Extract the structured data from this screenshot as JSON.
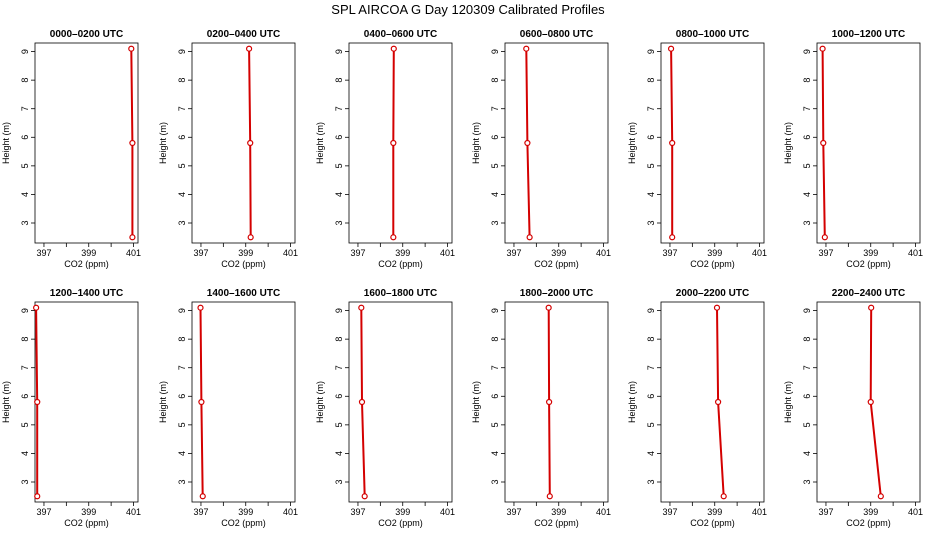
{
  "title": "SPL AIRCOA G  Day 120309  Calibrated Profiles",
  "colors": {
    "series": "#d40000",
    "axis": "#000000"
  },
  "chart_data": [
    {
      "type": "line",
      "title": "0000–0200 UTC",
      "xlabel": "CO2 (ppm)",
      "ylabel": "Height (m)",
      "xlim": [
        396.6,
        401.2
      ],
      "ylim": [
        2.3,
        9.3
      ],
      "x_ticks": [
        397,
        398,
        399,
        400,
        401
      ],
      "x_tick_labels": [
        "397",
        "",
        "399",
        "",
        "401"
      ],
      "y_ticks": [
        3,
        4,
        5,
        6,
        7,
        8,
        9
      ],
      "y_tick_labels": [
        "3",
        "4",
        "5",
        "6",
        "7",
        "8",
        "9"
      ],
      "series": [
        {
          "x": [
            400.9,
            400.95,
            400.95
          ],
          "y": [
            9.1,
            5.8,
            2.5
          ]
        }
      ]
    },
    {
      "type": "line",
      "title": "0200–0400 UTC",
      "xlabel": "CO2 (ppm)",
      "ylabel": "Height (m)",
      "xlim": [
        396.6,
        401.2
      ],
      "ylim": [
        2.3,
        9.3
      ],
      "x_ticks": [
        397,
        398,
        399,
        400,
        401
      ],
      "x_tick_labels": [
        "397",
        "",
        "399",
        "",
        "401"
      ],
      "y_ticks": [
        3,
        4,
        5,
        6,
        7,
        8,
        9
      ],
      "y_tick_labels": [
        "3",
        "4",
        "5",
        "6",
        "7",
        "8",
        "9"
      ],
      "series": [
        {
          "x": [
            399.15,
            399.2,
            399.22
          ],
          "y": [
            9.1,
            5.8,
            2.5
          ]
        }
      ]
    },
    {
      "type": "line",
      "title": "0400–0600 UTC",
      "xlabel": "CO2 (ppm)",
      "ylabel": "Height (m)",
      "xlim": [
        396.6,
        401.2
      ],
      "ylim": [
        2.3,
        9.3
      ],
      "x_ticks": [
        397,
        398,
        399,
        400,
        401
      ],
      "x_tick_labels": [
        "397",
        "",
        "399",
        "",
        "401"
      ],
      "y_ticks": [
        3,
        4,
        5,
        6,
        7,
        8,
        9
      ],
      "y_tick_labels": [
        "3",
        "4",
        "5",
        "6",
        "7",
        "8",
        "9"
      ],
      "series": [
        {
          "x": [
            398.6,
            398.58,
            398.58
          ],
          "y": [
            9.1,
            5.8,
            2.5
          ]
        }
      ]
    },
    {
      "type": "line",
      "title": "0600–0800 UTC",
      "xlabel": "CO2 (ppm)",
      "ylabel": "Height (m)",
      "xlim": [
        396.6,
        401.2
      ],
      "ylim": [
        2.3,
        9.3
      ],
      "x_ticks": [
        397,
        398,
        399,
        400,
        401
      ],
      "x_tick_labels": [
        "397",
        "",
        "399",
        "",
        "401"
      ],
      "y_ticks": [
        3,
        4,
        5,
        6,
        7,
        8,
        9
      ],
      "y_tick_labels": [
        "3",
        "4",
        "5",
        "6",
        "7",
        "8",
        "9"
      ],
      "series": [
        {
          "x": [
            397.55,
            397.6,
            397.7
          ],
          "y": [
            9.1,
            5.8,
            2.5
          ]
        }
      ]
    },
    {
      "type": "line",
      "title": "0800–1000 UTC",
      "xlabel": "CO2 (ppm)",
      "ylabel": "Height (m)",
      "xlim": [
        396.6,
        401.2
      ],
      "ylim": [
        2.3,
        9.3
      ],
      "x_ticks": [
        397,
        398,
        399,
        400,
        401
      ],
      "x_tick_labels": [
        "397",
        "",
        "399",
        "",
        "401"
      ],
      "y_ticks": [
        3,
        4,
        5,
        6,
        7,
        8,
        9
      ],
      "y_tick_labels": [
        "3",
        "4",
        "5",
        "6",
        "7",
        "8",
        "9"
      ],
      "series": [
        {
          "x": [
            397.05,
            397.1,
            397.1
          ],
          "y": [
            9.1,
            5.8,
            2.5
          ]
        }
      ]
    },
    {
      "type": "line",
      "title": "1000–1200 UTC",
      "xlabel": "CO2 (ppm)",
      "ylabel": "Height (m)",
      "xlim": [
        396.6,
        401.2
      ],
      "ylim": [
        2.3,
        9.3
      ],
      "x_ticks": [
        397,
        398,
        399,
        400,
        401
      ],
      "x_tick_labels": [
        "397",
        "",
        "399",
        "",
        "401"
      ],
      "y_ticks": [
        3,
        4,
        5,
        6,
        7,
        8,
        9
      ],
      "y_tick_labels": [
        "3",
        "4",
        "5",
        "6",
        "7",
        "8",
        "9"
      ],
      "series": [
        {
          "x": [
            396.85,
            396.88,
            396.95
          ],
          "y": [
            9.1,
            5.8,
            2.5
          ]
        }
      ]
    },
    {
      "type": "line",
      "title": "1200–1400 UTC",
      "xlabel": "CO2 (ppm)",
      "ylabel": "Height (m)",
      "xlim": [
        396.6,
        401.2
      ],
      "ylim": [
        2.3,
        9.3
      ],
      "x_ticks": [
        397,
        398,
        399,
        400,
        401
      ],
      "x_tick_labels": [
        "397",
        "",
        "399",
        "",
        "401"
      ],
      "y_ticks": [
        3,
        4,
        5,
        6,
        7,
        8,
        9
      ],
      "y_tick_labels": [
        "3",
        "4",
        "5",
        "6",
        "7",
        "8",
        "9"
      ],
      "series": [
        {
          "x": [
            396.65,
            396.7,
            396.7
          ],
          "y": [
            9.1,
            5.8,
            2.5
          ]
        }
      ]
    },
    {
      "type": "line",
      "title": "1400–1600 UTC",
      "xlabel": "CO2 (ppm)",
      "ylabel": "Height (m)",
      "xlim": [
        396.6,
        401.2
      ],
      "ylim": [
        2.3,
        9.3
      ],
      "x_ticks": [
        397,
        398,
        399,
        400,
        401
      ],
      "x_tick_labels": [
        "397",
        "",
        "399",
        "",
        "401"
      ],
      "y_ticks": [
        3,
        4,
        5,
        6,
        7,
        8,
        9
      ],
      "y_tick_labels": [
        "3",
        "4",
        "5",
        "6",
        "7",
        "8",
        "9"
      ],
      "series": [
        {
          "x": [
            396.98,
            397.02,
            397.08
          ],
          "y": [
            9.1,
            5.8,
            2.5
          ]
        }
      ]
    },
    {
      "type": "line",
      "title": "1600–1800 UTC",
      "xlabel": "CO2 (ppm)",
      "ylabel": "Height (m)",
      "xlim": [
        396.6,
        401.2
      ],
      "ylim": [
        2.3,
        9.3
      ],
      "x_ticks": [
        397,
        398,
        399,
        400,
        401
      ],
      "x_tick_labels": [
        "397",
        "",
        "399",
        "",
        "401"
      ],
      "y_ticks": [
        3,
        4,
        5,
        6,
        7,
        8,
        9
      ],
      "y_tick_labels": [
        "3",
        "4",
        "5",
        "6",
        "7",
        "8",
        "9"
      ],
      "series": [
        {
          "x": [
            397.15,
            397.18,
            397.3
          ],
          "y": [
            9.1,
            5.8,
            2.5
          ]
        }
      ]
    },
    {
      "type": "line",
      "title": "1800–2000 UTC",
      "xlabel": "CO2 (ppm)",
      "ylabel": "Height (m)",
      "xlim": [
        396.6,
        401.2
      ],
      "ylim": [
        2.3,
        9.3
      ],
      "x_ticks": [
        397,
        398,
        399,
        400,
        401
      ],
      "x_tick_labels": [
        "397",
        "",
        "399",
        "",
        "401"
      ],
      "y_ticks": [
        3,
        4,
        5,
        6,
        7,
        8,
        9
      ],
      "y_tick_labels": [
        "3",
        "4",
        "5",
        "6",
        "7",
        "8",
        "9"
      ],
      "series": [
        {
          "x": [
            398.55,
            398.57,
            398.6
          ],
          "y": [
            9.1,
            5.8,
            2.5
          ]
        }
      ]
    },
    {
      "type": "line",
      "title": "2000–2200 UTC",
      "xlabel": "CO2 (ppm)",
      "ylabel": "Height (m)",
      "xlim": [
        396.6,
        401.2
      ],
      "ylim": [
        2.3,
        9.3
      ],
      "x_ticks": [
        397,
        398,
        399,
        400,
        401
      ],
      "x_tick_labels": [
        "397",
        "",
        "399",
        "",
        "401"
      ],
      "y_ticks": [
        3,
        4,
        5,
        6,
        7,
        8,
        9
      ],
      "y_tick_labels": [
        "3",
        "4",
        "5",
        "6",
        "7",
        "8",
        "9"
      ],
      "series": [
        {
          "x": [
            399.1,
            399.15,
            399.4
          ],
          "y": [
            9.1,
            5.8,
            2.5
          ]
        }
      ]
    },
    {
      "type": "line",
      "title": "2200–2400 UTC",
      "xlabel": "CO2 (ppm)",
      "ylabel": "Height (m)",
      "xlim": [
        396.6,
        401.2
      ],
      "ylim": [
        2.3,
        9.3
      ],
      "x_ticks": [
        397,
        398,
        399,
        400,
        401
      ],
      "x_tick_labels": [
        "397",
        "",
        "399",
        "",
        "401"
      ],
      "y_ticks": [
        3,
        4,
        5,
        6,
        7,
        8,
        9
      ],
      "y_tick_labels": [
        "3",
        "4",
        "5",
        "6",
        "7",
        "8",
        "9"
      ],
      "series": [
        {
          "x": [
            399.02,
            399.0,
            399.45
          ],
          "y": [
            9.1,
            5.8,
            2.5
          ]
        }
      ]
    }
  ]
}
